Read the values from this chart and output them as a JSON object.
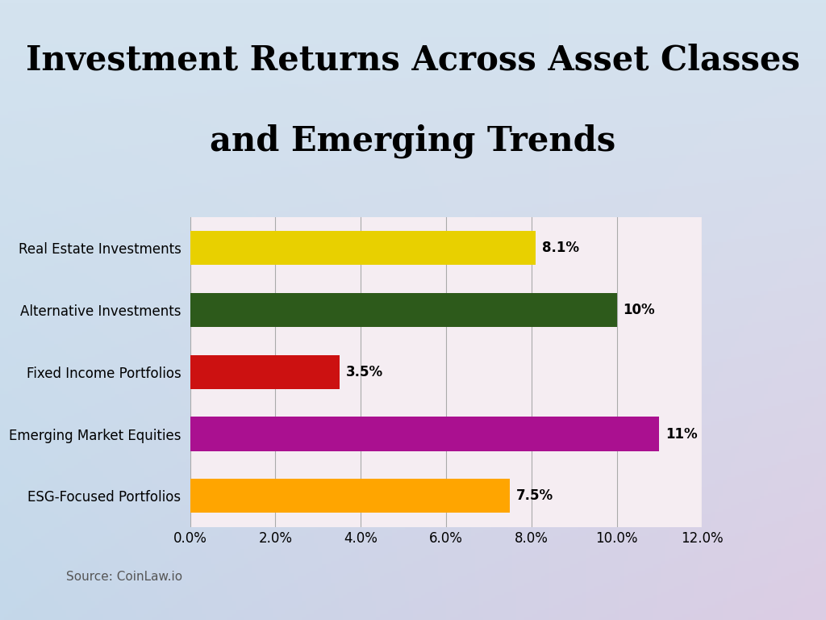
{
  "title_line1": "Investment Returns Across Asset Classes",
  "title_line2": "and Emerging Trends",
  "categories": [
    "ESG-Focused Portfolios",
    "Emerging Market Equities",
    "Fixed Income Portfolios",
    "Alternative Investments",
    "Real Estate Investments"
  ],
  "values": [
    7.5,
    11.0,
    3.5,
    10.0,
    8.1
  ],
  "bar_colors": [
    "#FFA500",
    "#AA1090",
    "#CC1111",
    "#2D5A1B",
    "#E8D000"
  ],
  "value_labels": [
    "7.5%",
    "11%",
    "3.5%",
    "10%",
    "8.1%"
  ],
  "xlim": [
    0,
    12
  ],
  "xtick_values": [
    0,
    2,
    4,
    6,
    8,
    10,
    12
  ],
  "xtick_labels": [
    "0.0%",
    "2.0%",
    "4.0%",
    "6.0%",
    "8.0%",
    "10.0%",
    "12.0%"
  ],
  "source_text": "Source: CoinLaw.io",
  "title_fontsize": 30,
  "label_fontsize": 12,
  "value_fontsize": 12,
  "source_fontsize": 11,
  "bar_height": 0.55,
  "bg_top_left": "#d4e3ef",
  "bg_top_right": "#d4e3ef",
  "bg_bottom_left": "#c8d8ea",
  "bg_bottom_right": "#ddd0e0",
  "plot_bg_color": "#f5edf2"
}
